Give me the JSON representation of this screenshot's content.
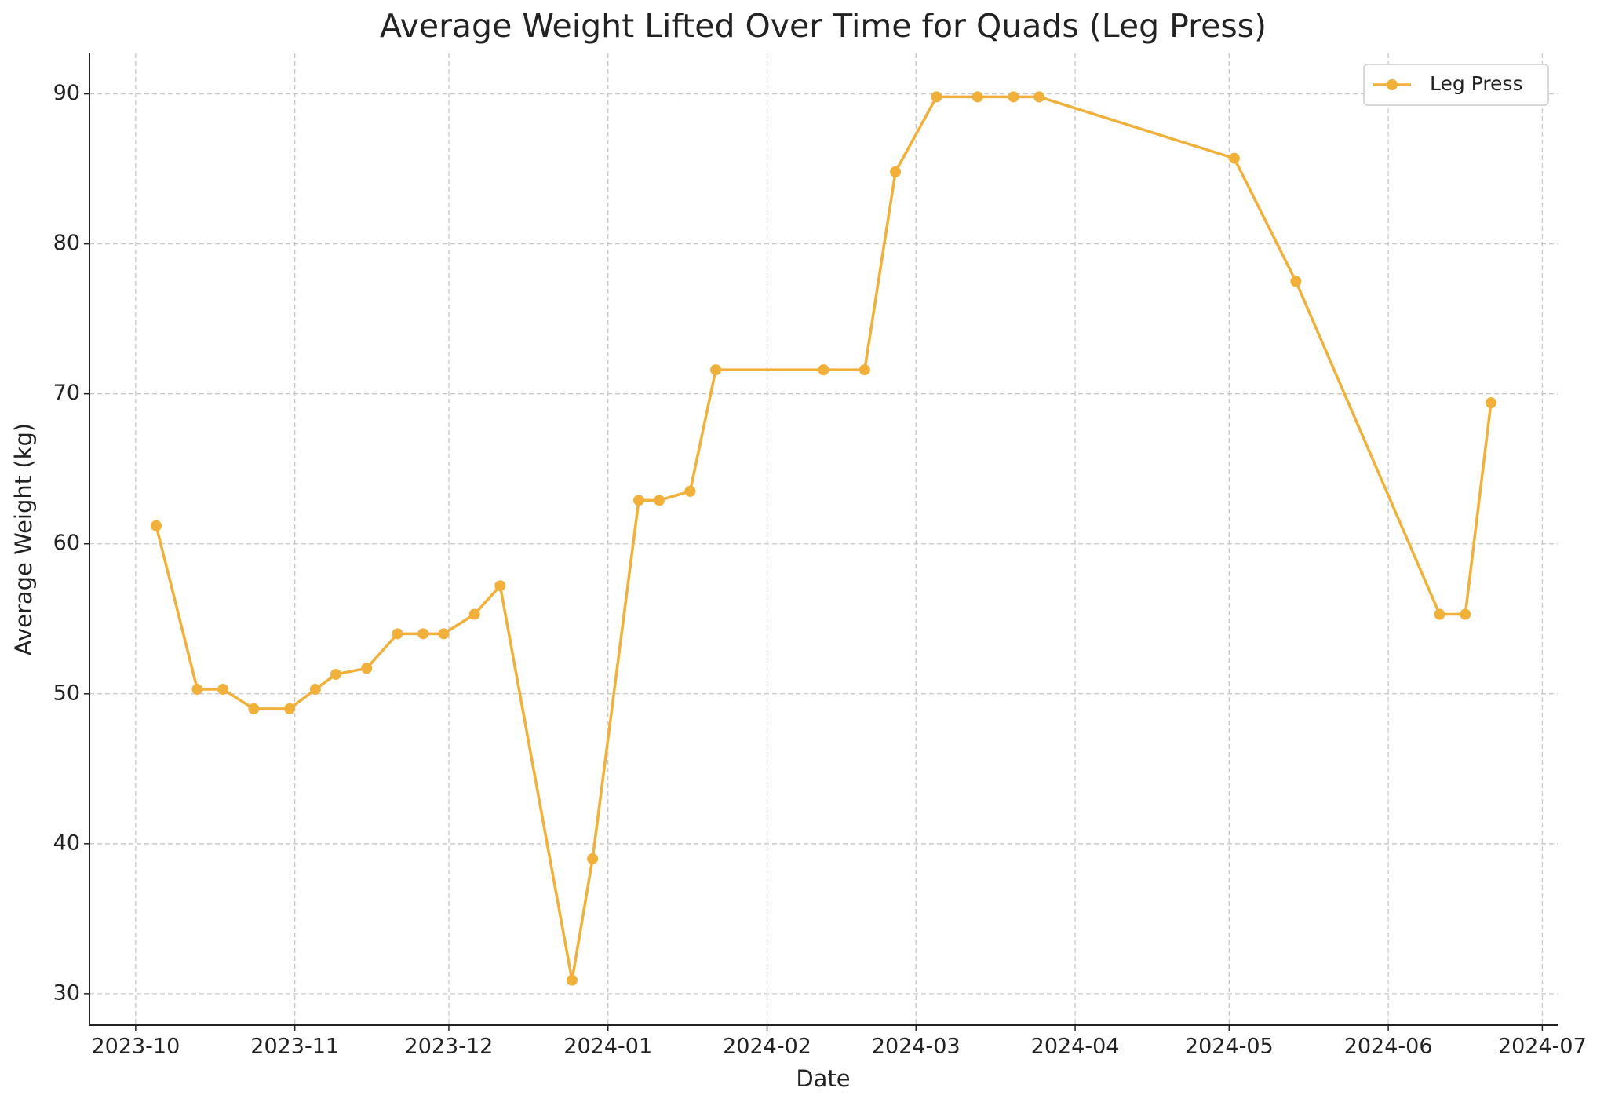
{
  "chart_data": {
    "type": "line",
    "title": "Average Weight Lifted Over Time for Quads (Leg Press)",
    "xlabel": "Date",
    "ylabel": "Average Weight (kg)",
    "x": [
      "2023-10-05",
      "2023-10-13",
      "2023-10-18",
      "2023-10-24",
      "2023-10-31",
      "2023-11-05",
      "2023-11-09",
      "2023-11-15",
      "2023-11-21",
      "2023-11-26",
      "2023-11-30",
      "2023-12-06",
      "2023-12-11",
      "2023-12-25",
      "2023-12-29",
      "2024-01-07",
      "2024-01-11",
      "2024-01-17",
      "2024-01-22",
      "2024-02-12",
      "2024-02-20",
      "2024-02-26",
      "2024-03-05",
      "2024-03-13",
      "2024-03-20",
      "2024-03-25",
      "2024-05-02",
      "2024-05-14",
      "2024-06-11",
      "2024-06-16",
      "2024-06-21"
    ],
    "series": [
      {
        "name": "Leg Press",
        "color": "#f0b03a",
        "values": [
          61.2,
          50.3,
          50.3,
          49.0,
          49.0,
          50.3,
          51.3,
          51.7,
          54.0,
          54.0,
          54.0,
          55.3,
          57.2,
          30.9,
          39.0,
          62.9,
          62.9,
          63.5,
          71.6,
          71.6,
          71.6,
          84.8,
          89.8,
          89.8,
          89.8,
          89.8,
          85.7,
          77.5,
          55.3,
          55.3,
          69.4
        ]
      }
    ],
    "xlim": [
      "2023-09-22",
      "2024-07-04"
    ],
    "xticks": [
      {
        "value": "2023-10-01",
        "label": "2023-10"
      },
      {
        "value": "2023-11-01",
        "label": "2023-11"
      },
      {
        "value": "2023-12-01",
        "label": "2023-12"
      },
      {
        "value": "2024-01-01",
        "label": "2024-01"
      },
      {
        "value": "2024-02-01",
        "label": "2024-02"
      },
      {
        "value": "2024-03-01",
        "label": "2024-03"
      },
      {
        "value": "2024-04-01",
        "label": "2024-04"
      },
      {
        "value": "2024-05-01",
        "label": "2024-05"
      },
      {
        "value": "2024-06-01",
        "label": "2024-06"
      },
      {
        "value": "2024-07-01",
        "label": "2024-07"
      }
    ],
    "ylim": [
      27.9,
      92.7
    ],
    "yticks": [
      30,
      40,
      50,
      60,
      70,
      80,
      90
    ],
    "grid": true,
    "legend": "upper right"
  }
}
